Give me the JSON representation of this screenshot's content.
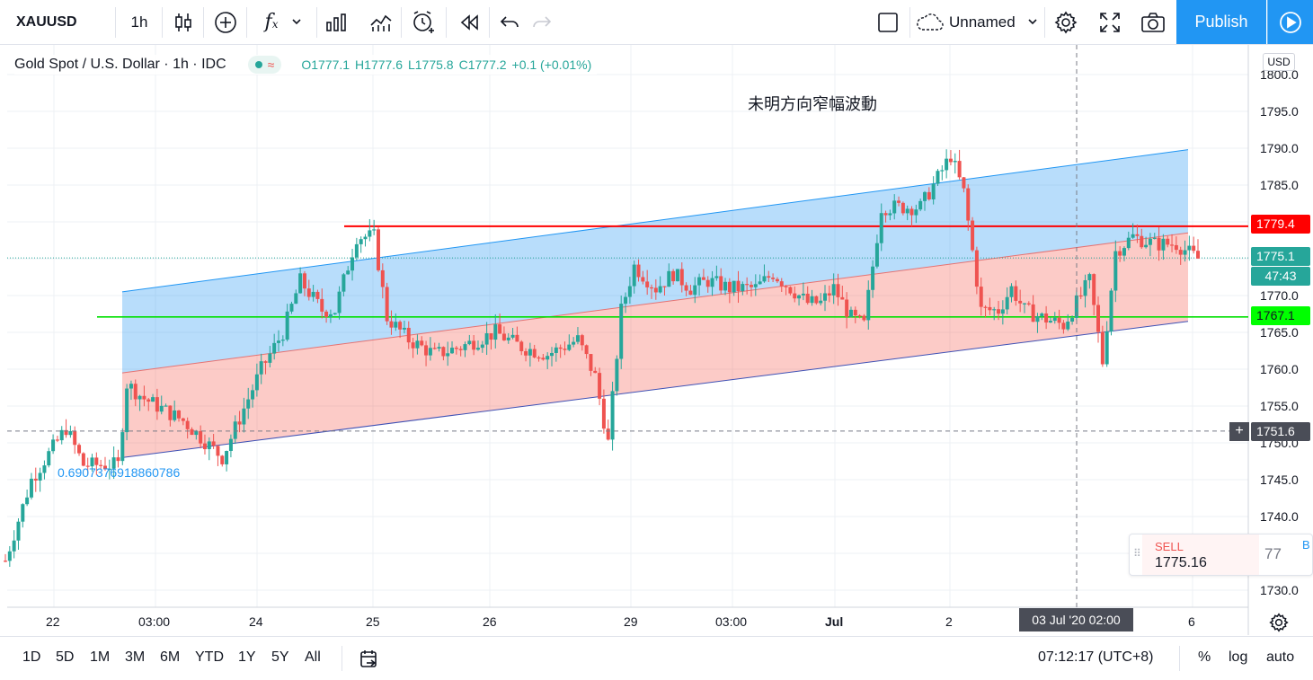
{
  "toolbar": {
    "symbol": "XAUUSD",
    "interval": "1h",
    "layout_name": "Unnamed",
    "publish_label": "Publish"
  },
  "legend": {
    "title": "Gold Spot / U.S. Dollar · 1h · IDC",
    "open": "O1777.1",
    "high": "H1777.6",
    "low": "L1775.8",
    "close": "C1777.2",
    "change": "+0.1 (+0.01%)"
  },
  "currency_tag": "USD",
  "annotation": "未明方向窄幅波動",
  "fib_text": "0.6907376918860786",
  "price_labels": {
    "resistance": "1779.4",
    "current": "1775.1",
    "countdown": "47:43",
    "support": "1767.1",
    "cursor": "1751.6"
  },
  "sell_panel": {
    "label": "SELL",
    "price": "1775.16",
    "spread": "77",
    "buy_partial": "B"
  },
  "time_axis": {
    "labels": [
      "22",
      "03:00",
      "24",
      "25",
      "26",
      "29",
      "03:00",
      "Jul",
      "2",
      "6"
    ],
    "cursor_label": "03 Jul '20   02:00"
  },
  "bottom": {
    "ranges": [
      "1D",
      "5D",
      "1M",
      "3M",
      "6M",
      "YTD",
      "1Y",
      "5Y",
      "All"
    ],
    "clock": "07:12:17 (UTC+8)",
    "percent_label": "%",
    "log_label": "log",
    "auto_label": "auto"
  },
  "colors": {
    "up": "#26a69a",
    "down": "#ef5350",
    "channel_upper": "#2196f3",
    "channel_lower": "#f44336",
    "resistance_line": "#ff0000",
    "support_line": "#00e000",
    "accent": "#2196f3"
  },
  "chart_data": {
    "type": "candlestick",
    "title": "Gold Spot / U.S. Dollar · 1h · IDC",
    "ylim": [
      1727,
      1802
    ],
    "y_ticks": [
      1730,
      1735,
      1740,
      1745,
      1750,
      1755,
      1760,
      1765,
      1770,
      1775,
      1780,
      1785,
      1790,
      1795,
      1800
    ],
    "x_ticks": [
      "22",
      "03:00",
      "24",
      "25",
      "26",
      "29",
      "03:00",
      "Jul",
      "2",
      "6"
    ],
    "horizontal_lines": [
      {
        "name": "resistance",
        "value": 1779.4,
        "color": "#ff0000"
      },
      {
        "name": "support",
        "value": 1767.1,
        "color": "#00e000"
      }
    ],
    "last_price": 1775.1,
    "parallel_channel": {
      "start": {
        "date": "22 Jun 20:00",
        "upper": 1770.5,
        "mid": 1759.5,
        "lower": 1748
      },
      "end": {
        "date": "6 Jul 00:00",
        "upper": 1789.8,
        "mid": 1778.5,
        "lower": 1766.5
      }
    },
    "path": [
      [
        0,
        1734
      ],
      [
        12,
        1745
      ],
      [
        28,
        1752
      ],
      [
        36,
        1747
      ],
      [
        44,
        1747
      ],
      [
        52,
        1747
      ],
      [
        56,
        1758
      ],
      [
        64,
        1756
      ],
      [
        82,
        1753
      ],
      [
        100,
        1748
      ],
      [
        118,
        1760
      ],
      [
        128,
        1765
      ],
      [
        136,
        1772
      ],
      [
        146,
        1768
      ],
      [
        152,
        1768
      ],
      [
        162,
        1778
      ],
      [
        170,
        1778
      ],
      [
        176,
        1767
      ],
      [
        186,
        1764
      ],
      [
        198,
        1762
      ],
      [
        210,
        1763
      ],
      [
        226,
        1765
      ],
      [
        238,
        1763
      ],
      [
        250,
        1762
      ],
      [
        264,
        1764
      ],
      [
        272,
        1759
      ],
      [
        278,
        1750
      ],
      [
        284,
        1768
      ],
      [
        290,
        1774
      ],
      [
        300,
        1771
      ],
      [
        308,
        1773
      ],
      [
        316,
        1771
      ],
      [
        324,
        1772
      ],
      [
        334,
        1771
      ],
      [
        346,
        1771
      ],
      [
        354,
        1773
      ],
      [
        370,
        1769
      ],
      [
        376,
        1769
      ],
      [
        382,
        1771
      ],
      [
        390,
        1767
      ],
      [
        396,
        1766
      ],
      [
        404,
        1782
      ],
      [
        412,
        1782
      ],
      [
        422,
        1782
      ],
      [
        430,
        1786
      ],
      [
        436,
        1789
      ],
      [
        442,
        1784
      ],
      [
        450,
        1768
      ],
      [
        458,
        1768
      ],
      [
        464,
        1771
      ],
      [
        470,
        1768
      ],
      [
        478,
        1767
      ],
      [
        488,
        1766
      ],
      [
        500,
        1772
      ],
      [
        506,
        1761
      ],
      [
        512,
        1776
      ],
      [
        520,
        1778
      ],
      [
        530,
        1777
      ],
      [
        540,
        1777
      ],
      [
        550,
        1775
      ]
    ]
  }
}
